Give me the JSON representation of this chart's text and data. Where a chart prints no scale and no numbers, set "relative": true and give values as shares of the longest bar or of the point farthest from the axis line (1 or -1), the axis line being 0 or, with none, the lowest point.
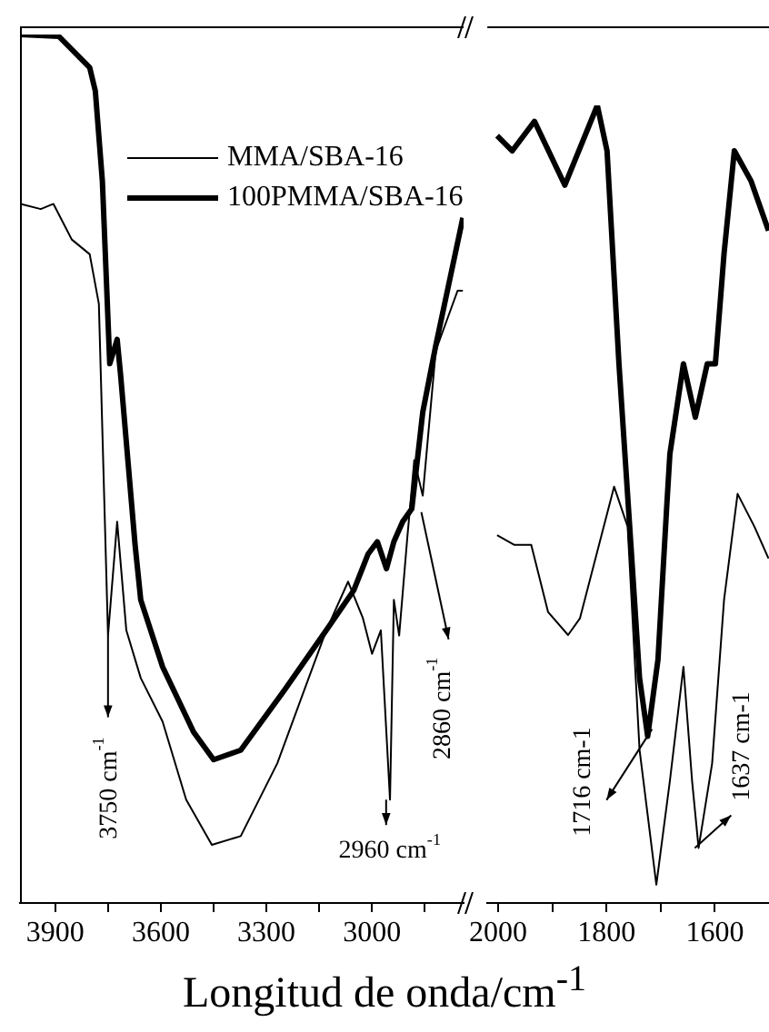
{
  "chart_data": [
    {
      "type": "line",
      "relative": true,
      "xlabel": "Longitud de onda/cm$^{-1}$",
      "xlim": [
        4000,
        2740
      ],
      "xticks": [
        3900,
        {
          "value": 3750,
          "label": null
        },
        3600,
        {
          "value": 3450,
          "label": null
        },
        3300,
        {
          "value": 3150,
          "label": null
        },
        3000,
        {
          "value": 2850,
          "label": null
        }
      ],
      "tick_labels": "x",
      "legend": "top",
      "marker": "none",
      "line_style": "solid",
      "annotations": [
        {
          "text": "3750 cm$^{-1}$",
          "x": 3750,
          "y": 0.308
        },
        {
          "text": "2960 cm$^{-1}$",
          "x": 2960,
          "y": 0.119
        },
        {
          "text": "2860 cm$^{-1}$",
          "x": 2860,
          "y": 0.45
        }
      ],
      "series": [
        {
          "name": "MMA/SBA-16",
          "color": "#000000",
          "x": [
            3998,
            3941,
            3905,
            3853,
            3802,
            3776,
            3750,
            3724,
            3698,
            3657,
            3595,
            3528,
            3455,
            3373,
            3269,
            3130,
            3068,
            3026,
            3000,
            2975,
            2949,
            2938,
            2923,
            2900,
            2880,
            2856,
            2819,
            2757,
            2742
          ],
          "values": [
            0.805,
            0.799,
            0.805,
            0.764,
            0.747,
            0.69,
            0.308,
            0.439,
            0.314,
            0.259,
            0.209,
            0.119,
            0.067,
            0.077,
            0.161,
            0.314,
            0.37,
            0.328,
            0.287,
            0.314,
            0.119,
            0.349,
            0.308,
            0.42,
            0.51,
            0.469,
            0.636,
            0.705,
            0.705
          ]
        },
        {
          "name": "100PMMA/SBA-16",
          "color": "#000000",
          "x": [
            4000,
            3890,
            3802,
            3786,
            3766,
            3745,
            3724,
            3714,
            3673,
            3657,
            3595,
            3507,
            3450,
            3373,
            3249,
            3130,
            3052,
            3011,
            2985,
            2959,
            2938,
            2913,
            2887,
            2856,
            2819,
            2742
          ],
          "values": [
            1.0,
            0.998,
            0.962,
            0.935,
            0.831,
            0.621,
            0.649,
            0.607,
            0.412,
            0.349,
            0.272,
            0.197,
            0.165,
            0.176,
            0.245,
            0.314,
            0.36,
            0.402,
            0.416,
            0.385,
            0.416,
            0.439,
            0.454,
            0.565,
            0.642,
            0.789
          ]
        }
      ]
    },
    {
      "type": "line",
      "relative": true,
      "xlim": [
        2020,
        1500
      ],
      "xticks": [
        2000,
        {
          "value": 1900,
          "label": null
        },
        1800,
        {
          "value": 1700,
          "label": null
        },
        1600
      ],
      "tick_labels": "x",
      "marker": "none",
      "line_style": "solid",
      "annotations": [
        {
          "text": "1716 cm-1",
          "x": 1716,
          "y": 0.218
        },
        {
          "text": "1637 cm-1",
          "x": 1637,
          "y": 0.069
        }
      ],
      "series": [
        {
          "color": "#000000",
          "x": [
            2002,
            1970,
            1939,
            1908,
            1871,
            1849,
            1786,
            1761,
            1739,
            1708,
            1683,
            1658,
            1642,
            1630,
            1605,
            1583,
            1558,
            1527,
            1501
          ],
          "values": [
            0.461,
            0.449,
            0.449,
            0.365,
            0.336,
            0.357,
            0.522,
            0.472,
            0.192,
            0.023,
            0.153,
            0.296,
            0.153,
            0.069,
            0.175,
            0.38,
            0.513,
            0.472,
            0.432
          ]
        },
        {
          "color": "#000000",
          "x": [
            2002,
            1974,
            1933,
            1877,
            1817,
            1799,
            1777,
            1755,
            1739,
            1724,
            1705,
            1689,
            1683,
            1658,
            1636,
            1614,
            1599,
            1583,
            1564,
            1533,
            1501
          ],
          "values": [
            0.962,
            0.943,
            0.98,
            0.9,
            1,
            0.943,
            0.676,
            0.449,
            0.282,
            0.209,
            0.305,
            0.495,
            0.563,
            0.676,
            0.609,
            0.676,
            0.676,
            0.814,
            0.943,
            0.905,
            0.843
          ]
        }
      ]
    }
  ]
}
